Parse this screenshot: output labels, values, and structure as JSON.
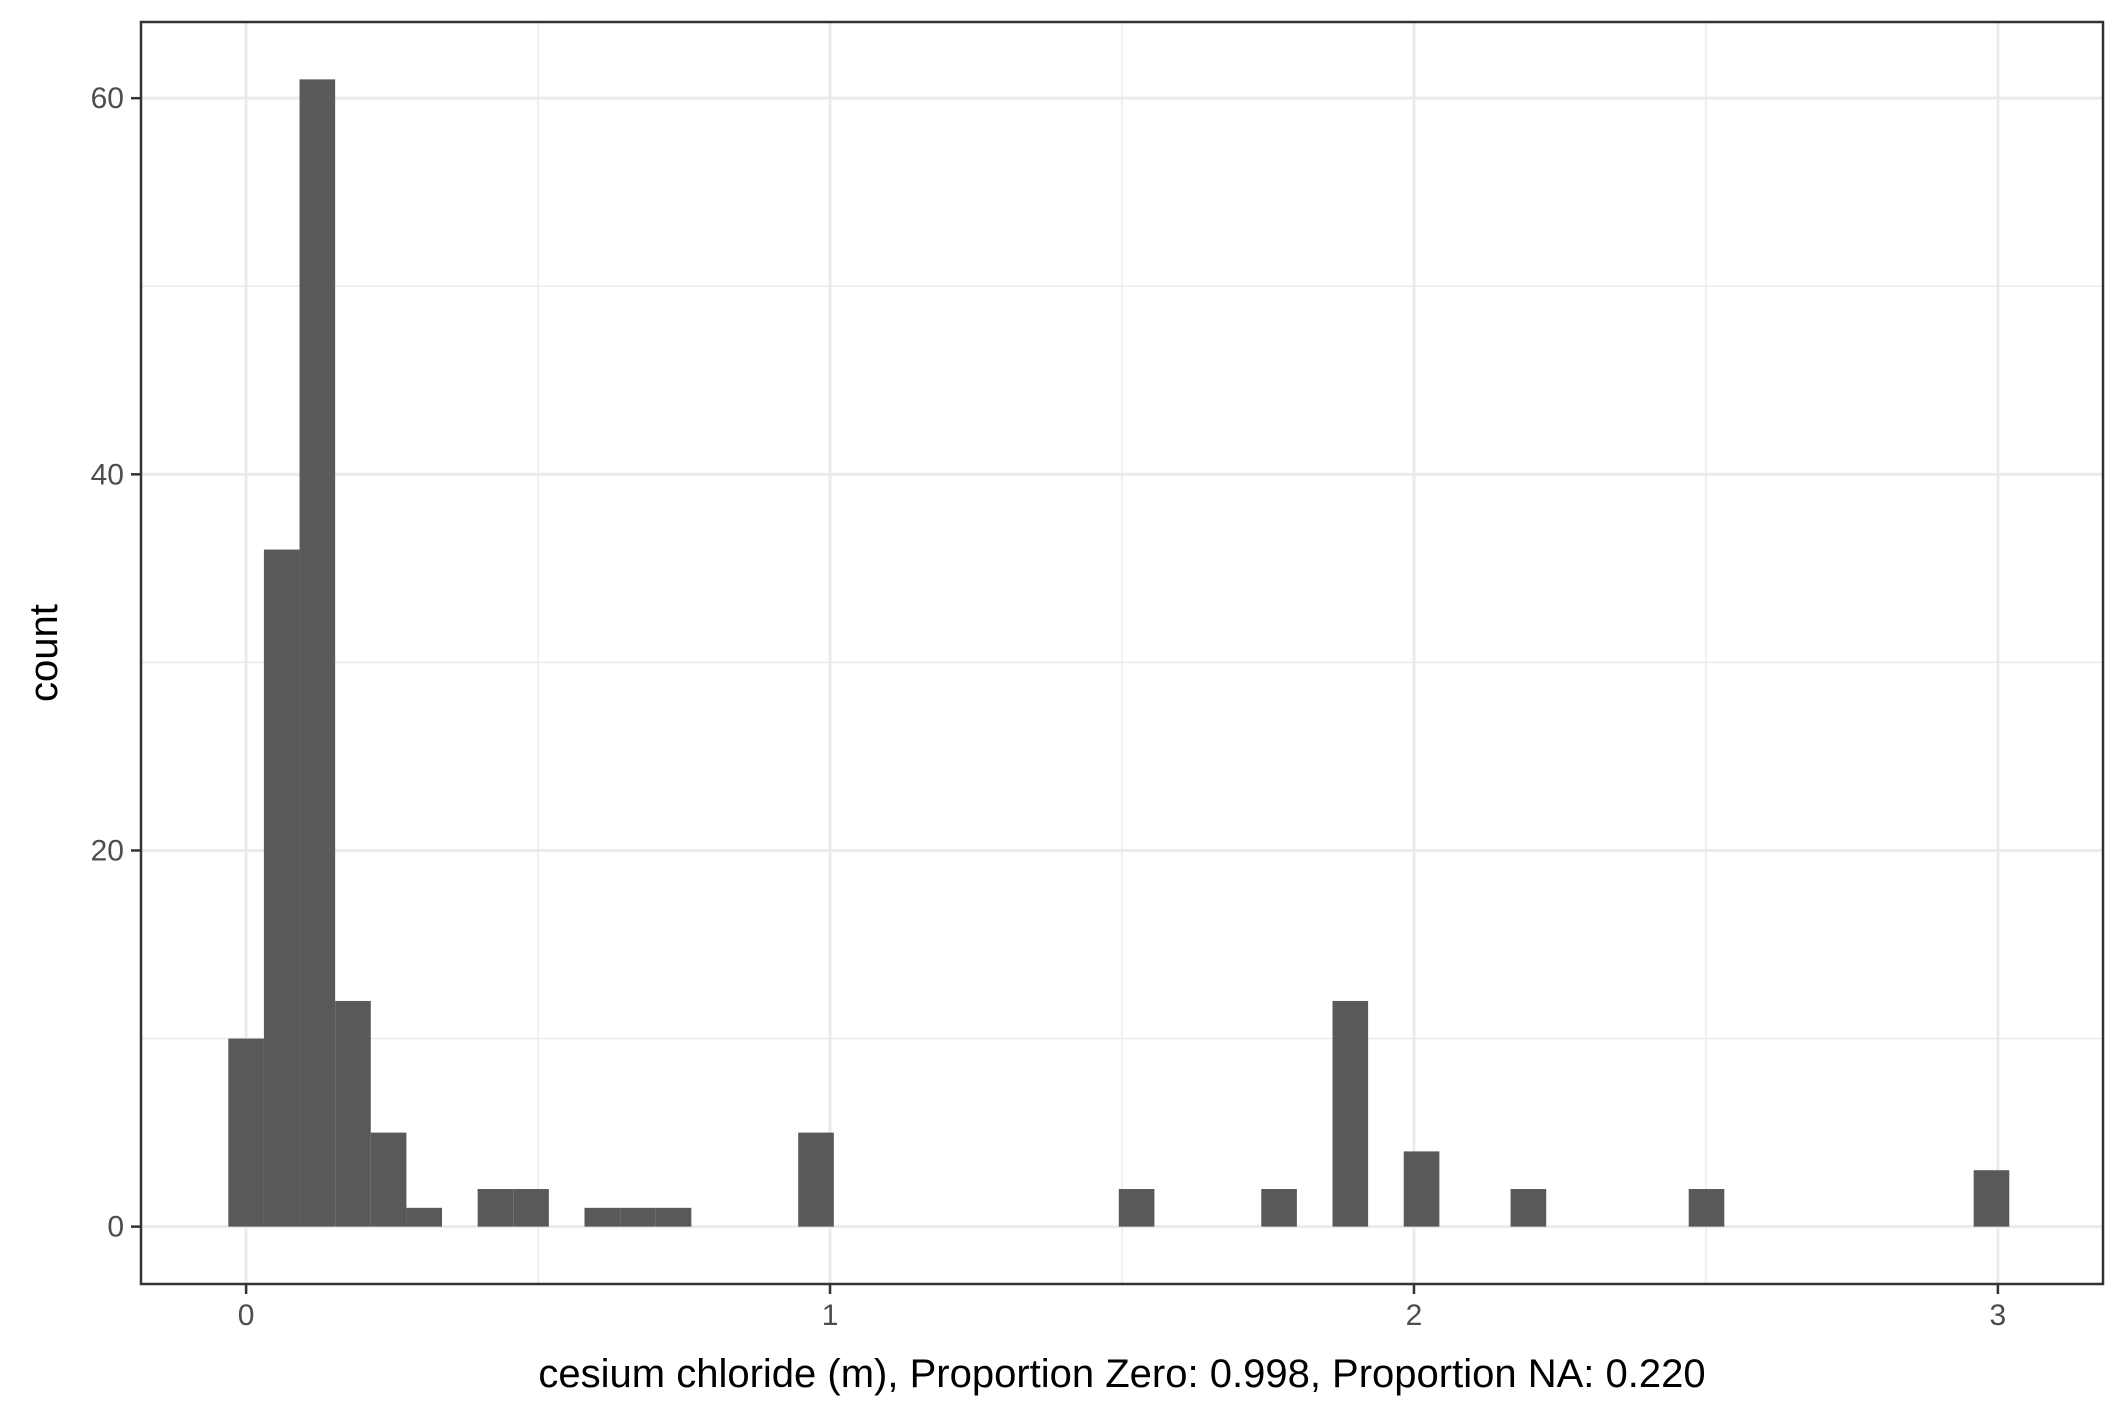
{
  "chart_data": {
    "type": "bar",
    "subtype": "histogram",
    "title": "",
    "xlabel": "cesium chloride (m), Proportion Zero: 0.998, Proportion NA: 0.220",
    "ylabel": "count",
    "xlim": [
      -0.18,
      3.18
    ],
    "ylim": [
      -3.05,
      64.05
    ],
    "x_ticks": [
      0,
      1,
      2,
      3
    ],
    "x_tick_labels": [
      "0",
      "1",
      "2",
      "3"
    ],
    "y_ticks": [
      0,
      20,
      40,
      60
    ],
    "y_tick_labels": [
      "0",
      "20",
      "40",
      "60"
    ],
    "x_minor_ticks": [
      0.5,
      1.5,
      2.5
    ],
    "y_minor_ticks": [
      10,
      30,
      50
    ],
    "grid": true,
    "legend": "none",
    "bin_width": 0.061,
    "bars": [
      {
        "x": 0.0,
        "value": 10
      },
      {
        "x": 0.061,
        "value": 36
      },
      {
        "x": 0.122,
        "value": 61
      },
      {
        "x": 0.183,
        "value": 12
      },
      {
        "x": 0.244,
        "value": 5
      },
      {
        "x": 0.305,
        "value": 1
      },
      {
        "x": 0.427,
        "value": 2
      },
      {
        "x": 0.488,
        "value": 2
      },
      {
        "x": 0.61,
        "value": 1
      },
      {
        "x": 0.671,
        "value": 1
      },
      {
        "x": 0.732,
        "value": 1
      },
      {
        "x": 0.976,
        "value": 5
      },
      {
        "x": 1.525,
        "value": 2
      },
      {
        "x": 1.769,
        "value": 2
      },
      {
        "x": 1.891,
        "value": 12
      },
      {
        "x": 2.013,
        "value": 4
      },
      {
        "x": 2.196,
        "value": 2
      },
      {
        "x": 2.501,
        "value": 2
      },
      {
        "x": 2.989,
        "value": 3
      }
    ],
    "colors": {
      "bar_fill": "#595959",
      "panel_background": "#ffffff",
      "grid": "#ebebeb",
      "border": "#333333"
    }
  }
}
